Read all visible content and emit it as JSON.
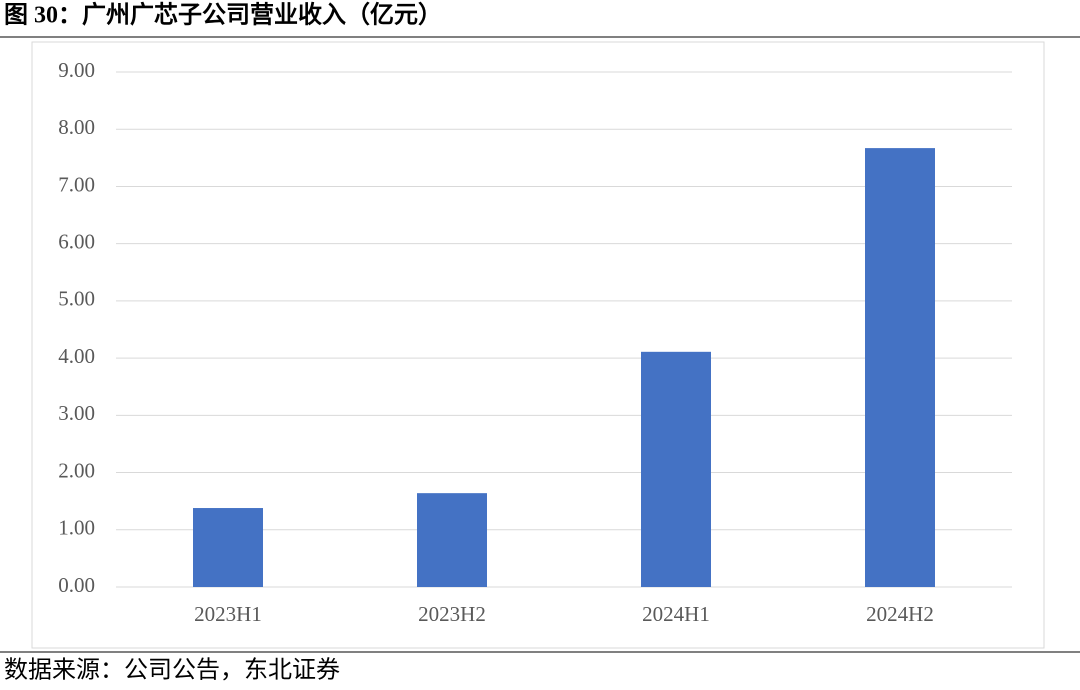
{
  "chart_data": {
    "type": "bar",
    "title": "图 30：广州广芯子公司营业收入（亿元）",
    "source": "数据来源：公司公告，东北证券",
    "categories": [
      "2023H1",
      "2023H2",
      "2024H1",
      "2024H2"
    ],
    "values": [
      1.38,
      1.64,
      4.11,
      7.67
    ],
    "color": "#4472c4",
    "ylim": [
      0,
      9
    ],
    "yticks": [
      {
        "value": 0,
        "label": "0.00"
      },
      {
        "value": 1,
        "label": "1.00"
      },
      {
        "value": 2,
        "label": "2.00"
      },
      {
        "value": 3,
        "label": "3.00"
      },
      {
        "value": 4,
        "label": "4.00"
      },
      {
        "value": 5,
        "label": "5.00"
      },
      {
        "value": 6,
        "label": "6.00"
      },
      {
        "value": 7,
        "label": "7.00"
      },
      {
        "value": 8,
        "label": "8.00"
      },
      {
        "value": 9,
        "label": "9.00"
      }
    ],
    "grid": true
  }
}
